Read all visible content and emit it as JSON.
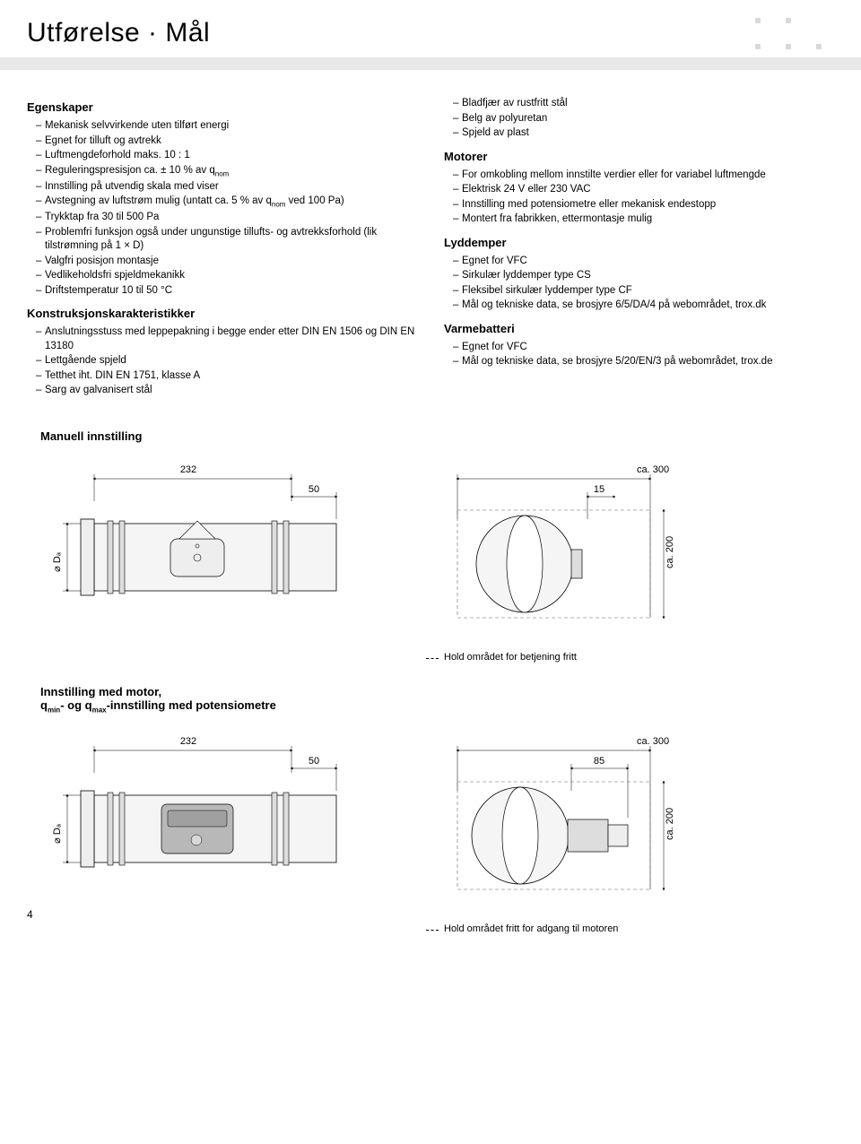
{
  "title": "Utførelse · Mål",
  "left": {
    "h1": "Egenskaper",
    "items1": [
      "Mekanisk selvvirkende uten tilført energi",
      "Egnet for tilluft og avtrekk",
      "Luftmengdeforhold maks. 10 : 1",
      "Reguleringspresisjon ca. ± 10 % av q|nom",
      "Innstilling på utvendig skala med viser",
      "Avstegning av luftstrøm mulig (untatt ca. 5 % av q|nom| ved 100 Pa)",
      "Trykktap fra 30 til 500 Pa",
      "Problemfri funksjon også under ungunstige tillufts- og avtrekksforhold (lik tilstrømning på 1 × D)",
      "Valgfri posisjon montasje",
      "Vedlikeholdsfri spjeldmekanikk",
      "Driftstemperatur 10 til 50 °C"
    ],
    "h2": "Konstruksjonskarakteristikker",
    "items2": [
      "Anslutningsstuss med leppepakning i begge ender etter DIN EN 1506 og DIN EN 13180",
      "Lettgående spjeld",
      "Tetthet iht. DIN EN 1751, klasse A",
      "Sarg av galvanisert stål"
    ]
  },
  "right": {
    "items0": [
      "Bladfjær av rustfritt stål",
      "Belg av polyuretan",
      "Spjeld av plast"
    ],
    "h1": "Motorer",
    "items1": [
      "For omkobling mellom innstilte verdier eller for variabel luftmengde",
      "Elektrisk 24 V eller 230 VAC",
      "Innstilling med potensiometre eller mekanisk endestopp",
      "Montert fra fabrikken, ettermontasje mulig"
    ],
    "h2": "Lyddemper",
    "items2": [
      "Egnet for VFC",
      "Sirkulær lyddemper type CS",
      "Fleksibel sirkulær lyddemper type CF",
      "Mål og tekniske data, se brosjyre 6/5/DA/4 på webområdet, trox.dk"
    ],
    "h3": "Varmebatteri",
    "items3": [
      "Egnet for VFC",
      "Mål og tekniske data, se brosjyre 5/20/EN/3 på webområdet, trox.de"
    ]
  },
  "sec1": {
    "title": "Manuell innstilling",
    "dim_len": "232",
    "dim_end": "50",
    "dim_dia": "⌀ Dₐ",
    "dim_w": "ca. 300",
    "dim_off": "15",
    "dim_h": "ca. 200",
    "note": "Hold området for betjening fritt"
  },
  "sec2": {
    "title": "Innstilling med motor,",
    "title2": "q|min|- og q|max|-innstilling med potensiometre",
    "dim_len": "232",
    "dim_end": "50",
    "dim_dia": "⌀ Dₐ",
    "dim_w": "ca. 300",
    "dim_off": "85",
    "dim_h": "ca. 200",
    "note": "Hold området fritt for adgang til motoren"
  },
  "page_num": "4",
  "colors": {
    "graybar": "#e8e8e8",
    "stroke": "#000000",
    "fill_light": "#f5f5f5",
    "fill_mid": "#dddddd",
    "fill_dark": "#999999",
    "dash_box": "#666666"
  }
}
